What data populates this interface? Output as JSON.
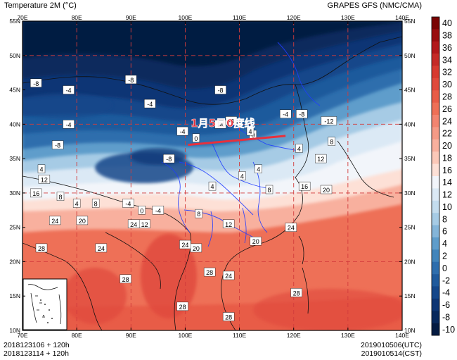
{
  "header": {
    "left": "Temperature  2M (°C)",
    "right": "GRAPES GFS (NMC/CMA)"
  },
  "footer": {
    "left_line1": "2018123106 + 120h",
    "left_line2": "2018123114 + 120h",
    "right_line1": "2019010506(UTC)",
    "right_line2": "2019010514(CST)"
  },
  "annotation": {
    "text": "1月5日0度线",
    "color": "#e8303c"
  },
  "colors": {
    "frame": "#000000",
    "grid": "#d23c3c",
    "province_lines": "#1f3cff"
  },
  "axes": {
    "lon_labels": [
      "70E",
      "80E",
      "90E",
      "100E",
      "110E",
      "120E",
      "130E",
      "140E"
    ],
    "lat_labels": [
      "10N",
      "15N",
      "20N",
      "25N",
      "30N",
      "35N",
      "40N",
      "45N",
      "50N",
      "55N"
    ],
    "lon_range": [
      70,
      140
    ],
    "lat_range": [
      10,
      55
    ]
  },
  "colorbar": {
    "ticks": [
      "40",
      "38",
      "36",
      "34",
      "32",
      "30",
      "28",
      "26",
      "24",
      "22",
      "20",
      "18",
      "16",
      "14",
      "12",
      "10",
      "8",
      "6",
      "4",
      "2",
      "0",
      "-2",
      "-4",
      "-6",
      "-8",
      "-10"
    ],
    "colors": [
      "#7a0403",
      "#990d0f",
      "#b2181b",
      "#c52a27",
      "#d73a30",
      "#e04a3c",
      "#e85c47",
      "#ee7057",
      "#f28470",
      "#f59a86",
      "#f8b09e",
      "#fbc8b8",
      "#fde0d6",
      "#f2f5fa",
      "#dbe9f5",
      "#c3dcee",
      "#a6cbe5",
      "#84b5d9",
      "#5f9dcb",
      "#4285bb",
      "#2e6ead",
      "#1f5a9c",
      "#14478a",
      "#0d3674",
      "#08295d",
      "#041b42"
    ]
  },
  "contour_labels": [
    {
      "t": "-8",
      "lon": 72.5,
      "lat": 46.0
    },
    {
      "t": "-4",
      "lon": 78.5,
      "lat": 45.0
    },
    {
      "t": "-8",
      "lon": 90.0,
      "lat": 46.5
    },
    {
      "t": "-4",
      "lon": 93.5,
      "lat": 43.0
    },
    {
      "t": "-8",
      "lon": 106.5,
      "lat": 45.0
    },
    {
      "t": "-4",
      "lon": 118.5,
      "lat": 41.5
    },
    {
      "t": "-8",
      "lon": 121.5,
      "lat": 41.5
    },
    {
      "t": "-12",
      "lon": 126.5,
      "lat": 40.5
    },
    {
      "t": "-4",
      "lon": 78.5,
      "lat": 40.0
    },
    {
      "t": "-8",
      "lon": 76.5,
      "lat": 37.0
    },
    {
      "t": "4",
      "lon": 73.5,
      "lat": 33.5
    },
    {
      "t": "-4",
      "lon": 99.5,
      "lat": 39.0
    },
    {
      "t": "0",
      "lon": 102.0,
      "lat": 38.0
    },
    {
      "t": "-4",
      "lon": 106.5,
      "lat": 40.0
    },
    {
      "t": "-8",
      "lon": 108.5,
      "lat": 40.5
    },
    {
      "t": "0",
      "lon": 112.5,
      "lat": 38.5
    },
    {
      "t": "4",
      "lon": 112.0,
      "lat": 39.0
    },
    {
      "t": "4",
      "lon": 121.0,
      "lat": 36.5
    },
    {
      "t": "8",
      "lon": 127.0,
      "lat": 37.5
    },
    {
      "t": "-8",
      "lon": 97.0,
      "lat": 35.0
    },
    {
      "t": "12",
      "lon": 74.0,
      "lat": 32.0
    },
    {
      "t": "16",
      "lon": 72.5,
      "lat": 30.0
    },
    {
      "t": "8",
      "lon": 77.0,
      "lat": 29.5
    },
    {
      "t": "4",
      "lon": 80.0,
      "lat": 28.5
    },
    {
      "t": "8",
      "lon": 83.5,
      "lat": 28.5
    },
    {
      "t": "-4",
      "lon": 89.5,
      "lat": 28.5
    },
    {
      "t": "0",
      "lon": 92.0,
      "lat": 27.5
    },
    {
      "t": "-4",
      "lon": 95.0,
      "lat": 27.5
    },
    {
      "t": "12",
      "lon": 92.5,
      "lat": 25.5
    },
    {
      "t": "20",
      "lon": 81.0,
      "lat": 26.0
    },
    {
      "t": "8",
      "lon": 102.5,
      "lat": 27.0
    },
    {
      "t": "4",
      "lon": 105.0,
      "lat": 31.0
    },
    {
      "t": "4",
      "lon": 110.5,
      "lat": 32.5
    },
    {
      "t": "4",
      "lon": 113.5,
      "lat": 33.5
    },
    {
      "t": "8",
      "lon": 115.5,
      "lat": 30.5
    },
    {
      "t": "16",
      "lon": 122.0,
      "lat": 31.0
    },
    {
      "t": "12",
      "lon": 125.0,
      "lat": 35.0
    },
    {
      "t": "20",
      "lon": 126.0,
      "lat": 30.5
    },
    {
      "t": "12",
      "lon": 108.0,
      "lat": 25.5
    },
    {
      "t": "20",
      "lon": 113.0,
      "lat": 23.0
    },
    {
      "t": "20",
      "lon": 102.0,
      "lat": 22.0
    },
    {
      "t": "24",
      "lon": 100.0,
      "lat": 22.5
    },
    {
      "t": "24",
      "lon": 76.0,
      "lat": 26.0
    },
    {
      "t": "28",
      "lon": 73.5,
      "lat": 22.0
    },
    {
      "t": "24",
      "lon": 84.5,
      "lat": 22.0
    },
    {
      "t": "24",
      "lon": 90.5,
      "lat": 25.5
    },
    {
      "t": "24",
      "lon": 119.5,
      "lat": 25.0
    },
    {
      "t": "28",
      "lon": 89.0,
      "lat": 17.5
    },
    {
      "t": "24",
      "lon": 108.0,
      "lat": 18.0
    },
    {
      "t": "28",
      "lon": 104.5,
      "lat": 18.5
    },
    {
      "t": "28",
      "lon": 120.5,
      "lat": 15.5
    },
    {
      "t": "28",
      "lon": 99.5,
      "lat": 13.5
    },
    {
      "t": "28",
      "lon": 108.0,
      "lat": 12.0
    }
  ]
}
